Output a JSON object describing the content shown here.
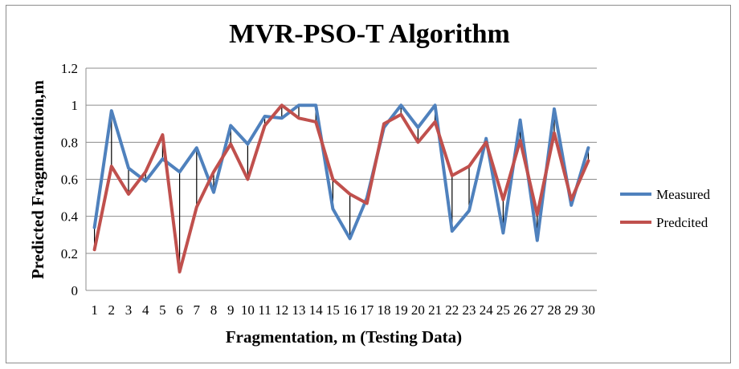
{
  "chart_data": {
    "type": "line",
    "title": "MVR-PSO-T Algorithm",
    "xlabel": "Fragmentation, m (Testing Data)",
    "ylabel": "Predicted Fragmentation,m",
    "categories": [
      "1",
      "2",
      "3",
      "4",
      "5",
      "6",
      "7",
      "8",
      "9",
      "10",
      "11",
      "12",
      "13",
      "14",
      "15",
      "16",
      "17",
      "18",
      "19",
      "20",
      "21",
      "22",
      "23",
      "24",
      "25",
      "26",
      "27",
      "28",
      "29",
      "30"
    ],
    "ylim": [
      0,
      1.2
    ],
    "yticks": [
      "0",
      "0.2",
      "0.4",
      "0.6",
      "0.8",
      "1",
      "1.2"
    ],
    "grid": true,
    "legend_position": "right",
    "drop_lines": true,
    "series": [
      {
        "name": "Measured",
        "color": "#4f81bd",
        "values": [
          0.34,
          0.97,
          0.66,
          0.59,
          0.71,
          0.64,
          0.77,
          0.53,
          0.89,
          0.79,
          0.94,
          0.93,
          1.0,
          1.0,
          0.44,
          0.28,
          0.5,
          0.88,
          1.0,
          0.88,
          1.0,
          0.32,
          0.43,
          0.82,
          0.31,
          0.92,
          0.27,
          0.98,
          0.46,
          0.77
        ]
      },
      {
        "name": "Predcited",
        "color": "#c0504d",
        "values": [
          0.22,
          0.67,
          0.52,
          0.64,
          0.84,
          0.1,
          0.45,
          0.64,
          0.79,
          0.6,
          0.89,
          1.0,
          0.93,
          0.91,
          0.6,
          0.52,
          0.47,
          0.9,
          0.95,
          0.8,
          0.91,
          0.62,
          0.67,
          0.8,
          0.49,
          0.81,
          0.41,
          0.85,
          0.49,
          0.7
        ]
      }
    ]
  }
}
